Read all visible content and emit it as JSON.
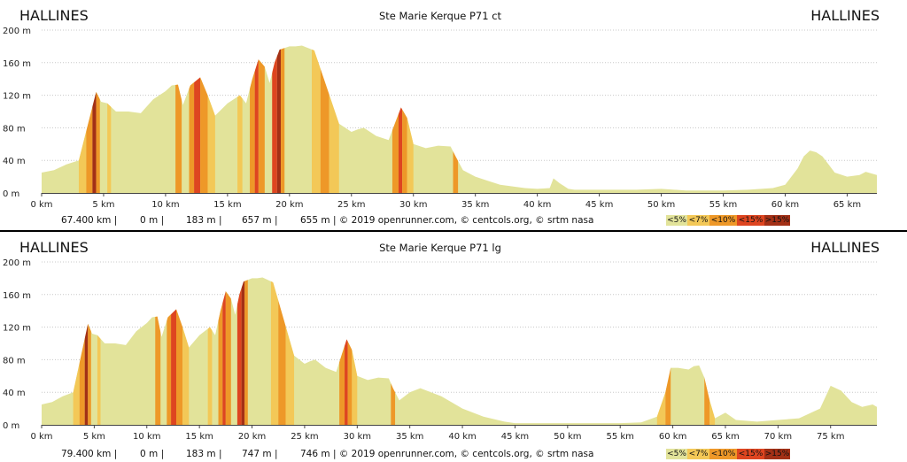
{
  "colors": {
    "lt5": "#e2e39a",
    "lt7": "#f3c857",
    "lt10": "#ee9828",
    "lt15": "#de4520",
    "gt15": "#a33016"
  },
  "legend": {
    "lt5": "<5%",
    "lt7": "<7%",
    "lt10": "<10%",
    "lt15": "<15%",
    "gt15": ">15%"
  },
  "charts": [
    {
      "title": "Ste Marie Kerque P71 ct",
      "start_label": "HALLINES",
      "end_label": "HALLINES",
      "stats": {
        "distance": "67.400 km |",
        "min_alt": "0 m |",
        "max_alt": "183 m |",
        "climb": "657 m |",
        "descent": "655 m | © 2019 openrunner.com, © centcols.org, © srtm nasa"
      },
      "chart_data": {
        "type": "area",
        "ylim": [
          0,
          200
        ],
        "y_ticks": [
          "0 m",
          "40 m",
          "80 m",
          "120 m",
          "160 m",
          "200 m"
        ],
        "xlim": [
          0,
          67.4
        ],
        "x_ticks": [
          "0 km",
          "5 km",
          "10 km",
          "15 km",
          "20 km",
          "25 km",
          "30 km",
          "35 km",
          "40 km",
          "45 km",
          "50 km",
          "55 km",
          "60 km",
          "65 km"
        ],
        "x": [
          0,
          1,
          2,
          3,
          3.5,
          4,
          4.4,
          4.8,
          5.3,
          6,
          7,
          8,
          9,
          10,
          10.5,
          11,
          11.4,
          12,
          12.8,
          13.4,
          14,
          15,
          16,
          16.5,
          17,
          17.5,
          18,
          18.4,
          18.8,
          19.2,
          19.6,
          20,
          20.5,
          21,
          22,
          23,
          24,
          25,
          25.5,
          26,
          27,
          28,
          28.5,
          29,
          29.5,
          30,
          31,
          32,
          33,
          33.4,
          34,
          35,
          36,
          37,
          38,
          39,
          40,
          41,
          41.3,
          41.8,
          42.5,
          43,
          45,
          48,
          50,
          52,
          55,
          57,
          59,
          60,
          61,
          61.5,
          62,
          62.5,
          63,
          63.5,
          64,
          65,
          66,
          66.5,
          67.4
        ],
        "y": [
          25,
          28,
          35,
          40,
          70,
          100,
          124,
          112,
          110,
          100,
          100,
          98,
          115,
          125,
          132,
          133,
          108,
          132,
          142,
          120,
          95,
          110,
          120,
          110,
          140,
          164,
          155,
          135,
          160,
          176,
          178,
          180,
          180,
          181,
          175,
          130,
          85,
          75,
          78,
          80,
          70,
          65,
          85,
          105,
          92,
          60,
          55,
          58,
          57,
          45,
          28,
          20,
          15,
          10,
          8,
          6,
          5,
          6,
          18,
          12,
          5,
          4,
          4,
          4,
          5,
          3,
          3,
          4,
          6,
          10,
          30,
          45,
          52,
          50,
          45,
          35,
          25,
          20,
          22,
          26,
          22
        ],
        "slope_bands": [
          {
            "from": 3.0,
            "to": 3.6,
            "class": "lt7"
          },
          {
            "from": 3.6,
            "to": 4.1,
            "class": "lt10"
          },
          {
            "from": 4.1,
            "to": 4.4,
            "class": "gt15"
          },
          {
            "from": 4.4,
            "to": 4.7,
            "class": "lt10"
          },
          {
            "from": 5.3,
            "to": 5.6,
            "class": "lt7"
          },
          {
            "from": 10.8,
            "to": 11.3,
            "class": "lt10"
          },
          {
            "from": 11.9,
            "to": 12.3,
            "class": "lt10"
          },
          {
            "from": 12.3,
            "to": 12.8,
            "class": "lt15"
          },
          {
            "from": 12.8,
            "to": 13.4,
            "class": "lt10"
          },
          {
            "from": 13.4,
            "to": 14.0,
            "class": "lt7"
          },
          {
            "from": 15.8,
            "to": 16.2,
            "class": "lt7"
          },
          {
            "from": 16.8,
            "to": 17.2,
            "class": "lt10"
          },
          {
            "from": 17.2,
            "to": 17.5,
            "class": "lt15"
          },
          {
            "from": 17.5,
            "to": 18.0,
            "class": "lt10"
          },
          {
            "from": 18.6,
            "to": 19.0,
            "class": "lt15"
          },
          {
            "from": 19.0,
            "to": 19.3,
            "class": "gt15"
          },
          {
            "from": 19.3,
            "to": 19.6,
            "class": "lt10"
          },
          {
            "from": 21.8,
            "to": 22.5,
            "class": "lt7"
          },
          {
            "from": 22.5,
            "to": 23.2,
            "class": "lt10"
          },
          {
            "from": 23.2,
            "to": 24.0,
            "class": "lt7"
          },
          {
            "from": 28.3,
            "to": 28.8,
            "class": "lt10"
          },
          {
            "from": 28.8,
            "to": 29.1,
            "class": "lt15"
          },
          {
            "from": 29.1,
            "to": 29.5,
            "class": "lt10"
          },
          {
            "from": 29.5,
            "to": 30.0,
            "class": "lt7"
          },
          {
            "from": 33.2,
            "to": 33.6,
            "class": "lt10"
          }
        ]
      }
    },
    {
      "title": "Ste Marie Kerque P71 lg",
      "start_label": "HALLINES",
      "end_label": "HALLINES",
      "stats": {
        "distance": "79.400 km |",
        "min_alt": "0 m |",
        "max_alt": "183 m |",
        "climb": "747 m |",
        "descent": "746 m | © 2019 openrunner.com, © centcols.org, © srtm nasa"
      },
      "chart_data": {
        "type": "area",
        "ylim": [
          0,
          200
        ],
        "y_ticks": [
          "0 m",
          "40 m",
          "80 m",
          "120 m",
          "160 m",
          "200 m"
        ],
        "xlim": [
          0,
          79.4
        ],
        "x_ticks": [
          "0 km",
          "5 km",
          "10 km",
          "15 km",
          "20 km",
          "25 km",
          "30 km",
          "35 km",
          "40 km",
          "45 km",
          "50 km",
          "55 km",
          "60 km",
          "65 km",
          "70 km",
          "75 km"
        ],
        "x": [
          0,
          1,
          2,
          3,
          3.5,
          4,
          4.4,
          4.8,
          5.3,
          6,
          7,
          8,
          9,
          10,
          10.5,
          11,
          11.4,
          12,
          12.8,
          13.4,
          14,
          15,
          16,
          16.5,
          17,
          17.5,
          18,
          18.4,
          18.8,
          19.2,
          19.6,
          20,
          20.5,
          21,
          22,
          23,
          24,
          25,
          25.5,
          26,
          27,
          28,
          28.5,
          29,
          29.5,
          30,
          31,
          32,
          33,
          33.4,
          34,
          35,
          36,
          38,
          40,
          42,
          44,
          45,
          48,
          50,
          52,
          55,
          57,
          58.5,
          59.3,
          59.8,
          60.5,
          61.5,
          62,
          62.5,
          63,
          63.5,
          64,
          65,
          66,
          68,
          70,
          72,
          74,
          75,
          76,
          77,
          78,
          79,
          79.4
        ],
        "y": [
          25,
          28,
          35,
          40,
          70,
          100,
          124,
          112,
          110,
          100,
          100,
          98,
          115,
          125,
          132,
          133,
          108,
          132,
          142,
          120,
          95,
          110,
          120,
          110,
          140,
          164,
          155,
          135,
          160,
          176,
          178,
          180,
          180,
          181,
          175,
          130,
          85,
          75,
          78,
          80,
          70,
          65,
          85,
          105,
          92,
          60,
          55,
          58,
          57,
          45,
          30,
          40,
          45,
          35,
          20,
          10,
          4,
          2,
          2,
          2,
          2,
          2,
          3,
          10,
          40,
          70,
          70,
          68,
          72,
          73,
          58,
          30,
          8,
          15,
          6,
          4,
          6,
          8,
          20,
          48,
          42,
          28,
          22,
          25,
          22
        ],
        "slope_bands": [
          {
            "from": 3.0,
            "to": 3.6,
            "class": "lt7"
          },
          {
            "from": 3.6,
            "to": 4.1,
            "class": "lt10"
          },
          {
            "from": 4.1,
            "to": 4.4,
            "class": "gt15"
          },
          {
            "from": 4.4,
            "to": 4.7,
            "class": "lt10"
          },
          {
            "from": 5.3,
            "to": 5.6,
            "class": "lt7"
          },
          {
            "from": 10.8,
            "to": 11.3,
            "class": "lt10"
          },
          {
            "from": 11.9,
            "to": 12.3,
            "class": "lt10"
          },
          {
            "from": 12.3,
            "to": 12.8,
            "class": "lt15"
          },
          {
            "from": 12.8,
            "to": 13.4,
            "class": "lt10"
          },
          {
            "from": 13.4,
            "to": 14.0,
            "class": "lt7"
          },
          {
            "from": 15.8,
            "to": 16.2,
            "class": "lt7"
          },
          {
            "from": 16.8,
            "to": 17.2,
            "class": "lt10"
          },
          {
            "from": 17.2,
            "to": 17.5,
            "class": "lt15"
          },
          {
            "from": 17.5,
            "to": 18.0,
            "class": "lt10"
          },
          {
            "from": 18.6,
            "to": 19.0,
            "class": "lt15"
          },
          {
            "from": 19.0,
            "to": 19.3,
            "class": "gt15"
          },
          {
            "from": 19.3,
            "to": 19.6,
            "class": "lt10"
          },
          {
            "from": 21.8,
            "to": 22.5,
            "class": "lt7"
          },
          {
            "from": 22.5,
            "to": 23.2,
            "class": "lt10"
          },
          {
            "from": 23.2,
            "to": 24.0,
            "class": "lt7"
          },
          {
            "from": 28.3,
            "to": 28.8,
            "class": "lt10"
          },
          {
            "from": 28.8,
            "to": 29.1,
            "class": "lt15"
          },
          {
            "from": 29.1,
            "to": 29.5,
            "class": "lt10"
          },
          {
            "from": 29.5,
            "to": 30.0,
            "class": "lt7"
          },
          {
            "from": 33.2,
            "to": 33.6,
            "class": "lt10"
          },
          {
            "from": 58.5,
            "to": 59.3,
            "class": "lt7"
          },
          {
            "from": 59.3,
            "to": 59.8,
            "class": "lt10"
          },
          {
            "from": 63.0,
            "to": 63.5,
            "class": "lt10"
          },
          {
            "from": 63.5,
            "to": 64.0,
            "class": "lt7"
          }
        ]
      }
    }
  ]
}
